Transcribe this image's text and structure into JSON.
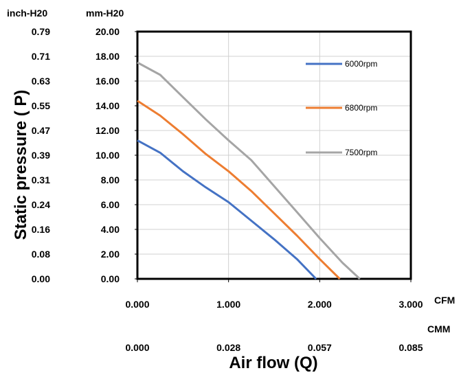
{
  "chart_data": {
    "type": "line",
    "xlabel": "Air flow (Q)",
    "ylabel": "Static pressure ( P)",
    "x_unit_primary": "CFM",
    "x_unit_secondary": "CMM",
    "y_unit_left": "inch-H20",
    "y_unit_right": "mm-H20",
    "xlim": [
      0,
      3.0
    ],
    "ylim": [
      0,
      20.0
    ],
    "x_tick_values": [
      0,
      1,
      2,
      3
    ],
    "x_tick_labels_cfm": [
      "0.000",
      "1.000",
      "2.000",
      "3.000"
    ],
    "x_tick_labels_cmm": [
      "0.000",
      "0.028",
      "0.057",
      "0.085"
    ],
    "y_tick_values": [
      0,
      2,
      4,
      6,
      8,
      10,
      12,
      14,
      16,
      18,
      20
    ],
    "y_tick_labels_mm": [
      "0.00",
      "2.00",
      "4.00",
      "6.00",
      "8.00",
      "10.00",
      "12.00",
      "14.00",
      "16.00",
      "18.00",
      "20.00"
    ],
    "y_tick_labels_inch": [
      "0.00",
      "0.08",
      "0.16",
      "0.24",
      "0.31",
      "0.39",
      "0.47",
      "0.55",
      "0.63",
      "0.71",
      "0.79"
    ],
    "grid": true,
    "legend_position": "right, inside plot",
    "series": [
      {
        "name": "6000rpm",
        "color": "#4472C4",
        "points": [
          [
            0,
            11.2
          ],
          [
            0.25,
            10.2
          ],
          [
            0.5,
            8.7
          ],
          [
            0.75,
            7.4
          ],
          [
            1.0,
            6.2
          ],
          [
            1.25,
            4.7
          ],
          [
            1.5,
            3.2
          ],
          [
            1.75,
            1.6
          ],
          [
            1.96,
            0
          ]
        ]
      },
      {
        "name": "6800rpm",
        "color": "#ED7D31",
        "points": [
          [
            0,
            14.4
          ],
          [
            0.25,
            13.2
          ],
          [
            0.5,
            11.7
          ],
          [
            0.75,
            10.1
          ],
          [
            1.0,
            8.7
          ],
          [
            1.25,
            7.1
          ],
          [
            1.5,
            5.3
          ],
          [
            1.75,
            3.5
          ],
          [
            2.0,
            1.6
          ],
          [
            2.22,
            0
          ]
        ]
      },
      {
        "name": "7500rpm",
        "color": "#A5A5A5",
        "points": [
          [
            0,
            17.5
          ],
          [
            0.25,
            16.5
          ],
          [
            0.5,
            14.7
          ],
          [
            0.75,
            12.9
          ],
          [
            1.0,
            11.2
          ],
          [
            1.25,
            9.6
          ],
          [
            1.5,
            7.5
          ],
          [
            1.75,
            5.4
          ],
          [
            2.0,
            3.3
          ],
          [
            2.25,
            1.3
          ],
          [
            2.44,
            0
          ]
        ]
      }
    ]
  }
}
